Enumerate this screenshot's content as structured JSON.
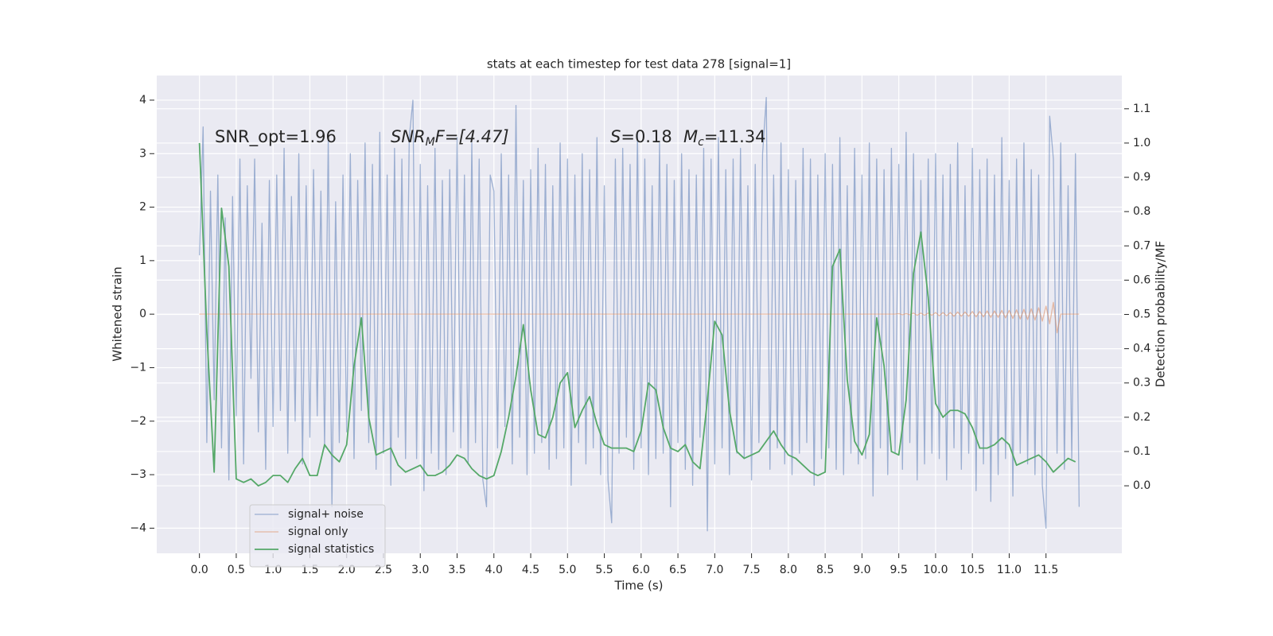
{
  "chart_data": {
    "type": "line",
    "title": "stats at each timestep for test data 278 [signal=1]",
    "xlabel": "Time (s)",
    "ylabel": "Whitened strain",
    "y2label": "Detection probability/MF",
    "annotations": [
      {
        "parts": [
          "SNR_opt=1.96"
        ]
      },
      {
        "parts": [
          "SNR",
          "M",
          "F=[4.47]"
        ]
      },
      {
        "parts": [
          "S",
          "=0.18"
        ]
      },
      {
        "parts": [
          "M",
          "c",
          "=11.34"
        ]
      }
    ],
    "xlim": [
      -0.58,
      12.53
    ],
    "ylim": [
      -4.47,
      4.46
    ],
    "y2lim": [
      -0.197,
      1.197
    ],
    "xticks": [
      {
        "value": 0,
        "label": "0.0"
      },
      0.5,
      {
        "value": 1,
        "label": "1.0"
      },
      1.5,
      {
        "value": 2,
        "label": "2.0"
      },
      2.5,
      {
        "value": 3,
        "label": "3.0"
      },
      3.5,
      {
        "value": 4,
        "label": "4.0"
      },
      4.5,
      {
        "value": 5,
        "label": "5.0"
      },
      5.5,
      {
        "value": 6,
        "label": "6.0"
      },
      6.5,
      {
        "value": 7,
        "label": "7.0"
      },
      7.5,
      {
        "value": 8,
        "label": "8.0"
      },
      8.5,
      {
        "value": 9,
        "label": "9.0"
      },
      9.5,
      {
        "value": 10,
        "label": "10.0"
      },
      10.5,
      {
        "value": 11,
        "label": "11.0"
      },
      11.5
    ],
    "yticks": [
      {
        "value": -4,
        "label": "−4"
      },
      {
        "value": -3,
        "label": "−3"
      },
      {
        "value": -2,
        "label": "−2"
      },
      {
        "value": -1,
        "label": "−1"
      },
      0,
      1,
      2,
      3,
      4
    ],
    "y2ticks": [
      {
        "value": 0,
        "label": "0.0"
      },
      0.1,
      0.2,
      0.3,
      0.4,
      0.5,
      0.6,
      0.7,
      0.8,
      0.9,
      {
        "value": 1,
        "label": "1.0"
      },
      1.1
    ],
    "grid": true,
    "legend": "lower left",
    "x": [
      0,
      0.05,
      0.1,
      0.15,
      0.2,
      0.25,
      0.3,
      0.35,
      0.4,
      0.45,
      0.5,
      0.55,
      0.6,
      0.65,
      0.7,
      0.75,
      0.8,
      0.85,
      0.9,
      0.95,
      1,
      1.05,
      1.1,
      1.15,
      1.2,
      1.25,
      1.3,
      1.35,
      1.4,
      1.45,
      1.5,
      1.55,
      1.6,
      1.65,
      1.7,
      1.75,
      1.8,
      1.85,
      1.9,
      1.95,
      2,
      2.05,
      2.1,
      2.15,
      2.2,
      2.25,
      2.3,
      2.35,
      2.4,
      2.45,
      2.5,
      2.55,
      2.6,
      2.65,
      2.7,
      2.75,
      2.8,
      2.85,
      2.9,
      2.95,
      3,
      3.05,
      3.1,
      3.15,
      3.2,
      3.25,
      3.3,
      3.35,
      3.4,
      3.45,
      3.5,
      3.55,
      3.6,
      3.65,
      3.7,
      3.75,
      3.8,
      3.85,
      3.9,
      3.95,
      4,
      4.05,
      4.1,
      4.15,
      4.2,
      4.25,
      4.3,
      4.35,
      4.4,
      4.45,
      4.5,
      4.55,
      4.6,
      4.65,
      4.7,
      4.75,
      4.8,
      4.85,
      4.9,
      4.95,
      5,
      5.05,
      5.1,
      5.15,
      5.2,
      5.25,
      5.3,
      5.35,
      5.4,
      5.45,
      5.5,
      5.55,
      5.6,
      5.65,
      5.7,
      5.75,
      5.8,
      5.85,
      5.9,
      5.95,
      6,
      6.05,
      6.1,
      6.15,
      6.2,
      6.25,
      6.3,
      6.35,
      6.4,
      6.45,
      6.5,
      6.55,
      6.6,
      6.65,
      6.7,
      6.75,
      6.8,
      6.85,
      6.9,
      6.95,
      7,
      7.05,
      7.1,
      7.15,
      7.2,
      7.25,
      7.3,
      7.35,
      7.4,
      7.45,
      7.5,
      7.55,
      7.6,
      7.65,
      7.7,
      7.75,
      7.8,
      7.85,
      7.9,
      7.95,
      8,
      8.05,
      8.1,
      8.15,
      8.2,
      8.25,
      8.3,
      8.35,
      8.4,
      8.45,
      8.5,
      8.55,
      8.6,
      8.65,
      8.7,
      8.75,
      8.8,
      8.85,
      8.9,
      8.95,
      9,
      9.05,
      9.1,
      9.15,
      9.2,
      9.25,
      9.3,
      9.35,
      9.4,
      9.45,
      9.5,
      9.55,
      9.6,
      9.65,
      9.7,
      9.75,
      9.8,
      9.85,
      9.9,
      9.95,
      10,
      10.05,
      10.1,
      10.15,
      10.2,
      10.25,
      10.3,
      10.35,
      10.4,
      10.45,
      10.5,
      10.55,
      10.6,
      10.65,
      10.7,
      10.75,
      10.8,
      10.85,
      10.9,
      10.95,
      11,
      11.05,
      11.1,
      11.15,
      11.2,
      11.25,
      11.3,
      11.35,
      11.4,
      11.45,
      11.5,
      11.55,
      11.6,
      11.65,
      11.7,
      11.75,
      11.8,
      11.85,
      11.9,
      11.95
    ],
    "series": [
      {
        "name": "signal+ noise",
        "color": "#4c72b0",
        "values": [
          1.1,
          3.5,
          -2.4,
          2.3,
          -1.6,
          2.6,
          -2.5,
          1.8,
          -3.1,
          2.2,
          -1.9,
          2.9,
          -2.8,
          2.4,
          -1.2,
          2.9,
          -2.2,
          1.7,
          -2.9,
          2.5,
          -2.1,
          2.6,
          -1.8,
          3.1,
          -2.6,
          2.2,
          -2.0,
          3.0,
          -2.8,
          2.4,
          -2.3,
          2.7,
          -1.9,
          2.3,
          -2.5,
          3.3,
          -3.6,
          2.1,
          -2.4,
          2.6,
          -2.2,
          3.0,
          -2.7,
          2.5,
          -1.8,
          3.2,
          -2.4,
          2.8,
          -2.9,
          3.4,
          -2.6,
          2.6,
          -3.2,
          3.1,
          -2.3,
          2.9,
          -2.7,
          3.3,
          4.0,
          -2.7,
          2.8,
          -3.3,
          2.4,
          -2.6,
          3.1,
          -2.9,
          2.5,
          -3.0,
          2.7,
          -2.2,
          3.3,
          -2.5,
          2.6,
          -2.8,
          3.2,
          -2.4,
          2.9,
          -3.1,
          -3.6,
          2.6,
          2.3,
          -2.5,
          3.0,
          -2.1,
          2.6,
          -2.8,
          3.9,
          -2.3,
          2.5,
          -3.0,
          2.7,
          -2.6,
          3.1,
          -2.4,
          2.8,
          -2.9,
          2.4,
          -2.7,
          3.2,
          -2.5,
          2.9,
          -3.2,
          2.6,
          -2.4,
          3.0,
          -2.8,
          2.7,
          -2.5,
          3.3,
          -3.0,
          2.4,
          -3.1,
          -3.9,
          2.9,
          -2.6,
          3.1,
          -2.3,
          2.8,
          -2.9,
          3.4,
          -2.5,
          2.9,
          -3.0,
          2.4,
          -2.7,
          3.2,
          -2.6,
          2.8,
          -3.6,
          2.5,
          -2.4,
          3.0,
          -2.9,
          2.7,
          -3.2,
          2.6,
          -2.3,
          3.1,
          -4.05,
          2.9,
          -2.8,
          3.3,
          -2.5,
          2.7,
          -3.0,
          2.9,
          -2.6,
          3.1,
          -2.7,
          2.4,
          -3.1,
          2.8,
          -2.4,
          3.0,
          4.05,
          -2.9,
          2.6,
          -2.5,
          3.2,
          -2.8,
          2.7,
          -3.0,
          2.5,
          -2.6,
          3.1,
          -2.4,
          2.9,
          -3.2,
          2.6,
          -2.7,
          3.0,
          -2.5,
          2.8,
          -2.9,
          3.3,
          -3.0,
          2.4,
          -2.6,
          3.1,
          -2.8,
          2.6,
          -2.7,
          3.2,
          -3.4,
          2.9,
          -2.5,
          2.7,
          -3.0,
          3.1,
          -2.6,
          2.8,
          -2.9,
          3.4,
          -2.4,
          3.0,
          -3.1,
          2.5,
          -2.8,
          2.9,
          -2.6,
          3.0,
          -2.7,
          2.6,
          -3.1,
          2.8,
          -2.5,
          3.2,
          -2.9,
          2.4,
          -2.6,
          3.1,
          -3.3,
          2.7,
          -2.8,
          2.9,
          -3.5,
          2.6,
          -3.0,
          3.3,
          -2.7,
          2.5,
          -3.4,
          2.9,
          -2.6,
          3.2,
          -2.8,
          2.7,
          -3.0,
          2.6,
          -3.2,
          -4.0,
          3.7,
          2.9,
          -2.6,
          3.2,
          -2.9,
          2.4,
          -2.7,
          3.0,
          -3.6
        ]
      },
      {
        "name": "signal only",
        "color": "#dd8452",
        "values": [
          0,
          0,
          0,
          0,
          0,
          0,
          0,
          0,
          0,
          0,
          0,
          0,
          0,
          0,
          0,
          0,
          0,
          0,
          0,
          0,
          0,
          0,
          0,
          0,
          0,
          0,
          0,
          0,
          0,
          0,
          0,
          0,
          0,
          0,
          0,
          0,
          0,
          0,
          0,
          0,
          0,
          0,
          0,
          0,
          0,
          0,
          0,
          0,
          0,
          0,
          0,
          0,
          0,
          0,
          0,
          0,
          0,
          0,
          0,
          0,
          0,
          0,
          0,
          0,
          0,
          0,
          0,
          0,
          0,
          0,
          0,
          0,
          0,
          0,
          0,
          0,
          0,
          0,
          0,
          0,
          0,
          0,
          0,
          0,
          0,
          0,
          0,
          0,
          0,
          0,
          0,
          0,
          0,
          0,
          0,
          0,
          0,
          0,
          0,
          0,
          0,
          0,
          0,
          0,
          0,
          0,
          0,
          0,
          0,
          0,
          0,
          0,
          0,
          0,
          0,
          0,
          0,
          0,
          0,
          0,
          0,
          0,
          0,
          0,
          0,
          0,
          0,
          0,
          0,
          0,
          0,
          0,
          0,
          0,
          0,
          0,
          0,
          0,
          0,
          0,
          0,
          0,
          0,
          0,
          0,
          0,
          0,
          0,
          0,
          0,
          0,
          0,
          0,
          0,
          0,
          0,
          0,
          0,
          0,
          0,
          0,
          0,
          0,
          0,
          0,
          0,
          0,
          0,
          0,
          0,
          0,
          0,
          0,
          0,
          0,
          0,
          0,
          0,
          0,
          0,
          0,
          0,
          0,
          0,
          0,
          0,
          0,
          0,
          0,
          0,
          0.01,
          -0.01,
          0.01,
          -0.01,
          0.02,
          -0.02,
          0.02,
          -0.02,
          0.02,
          -0.02,
          0.03,
          -0.03,
          0.03,
          -0.03,
          0.03,
          -0.04,
          0.04,
          -0.04,
          0.04,
          -0.04,
          0.05,
          -0.05,
          0.05,
          -0.05,
          0.06,
          -0.06,
          0.06,
          -0.06,
          0.07,
          -0.07,
          0.07,
          -0.08,
          0.08,
          -0.09,
          0.09,
          -0.1,
          0.1,
          -0.11,
          0.12,
          -0.13,
          0.15,
          -0.18,
          0.22,
          -0.35,
          0,
          0,
          0,
          0,
          0,
          0
        ]
      },
      {
        "name": "signal statistics",
        "color": "#55a868",
        "axis": "y2",
        "x": [
          0,
          0.1,
          0.2,
          0.3,
          0.4,
          0.5,
          0.6,
          0.7,
          0.8,
          0.9,
          1,
          1.1,
          1.2,
          1.3,
          1.4,
          1.5,
          1.6,
          1.7,
          1.8,
          1.9,
          2,
          2.1,
          2.2,
          2.3,
          2.4,
          2.5,
          2.6,
          2.7,
          2.8,
          2.9,
          3,
          3.1,
          3.2,
          3.3,
          3.4,
          3.5,
          3.6,
          3.7,
          3.8,
          3.9,
          4,
          4.1,
          4.2,
          4.3,
          4.4,
          4.5,
          4.6,
          4.7,
          4.8,
          4.9,
          5,
          5.1,
          5.2,
          5.3,
          5.4,
          5.5,
          5.6,
          5.7,
          5.8,
          5.9,
          6,
          6.1,
          6.2,
          6.3,
          6.4,
          6.5,
          6.6,
          6.7,
          6.8,
          6.9,
          7,
          7.1,
          7.2,
          7.3,
          7.4,
          7.5,
          7.6,
          7.7,
          7.8,
          7.9,
          8,
          8.1,
          8.2,
          8.3,
          8.4,
          8.5,
          8.6,
          8.7,
          8.8,
          8.9,
          9,
          9.1,
          9.2,
          9.3,
          9.4,
          9.5,
          9.6,
          9.7,
          9.8,
          9.9,
          10,
          10.1,
          10.2,
          10.3,
          10.4,
          10.5,
          10.6,
          10.7,
          10.8,
          10.9,
          11,
          11.1,
          11.2,
          11.3,
          11.4,
          11.5,
          11.6,
          11.7,
          11.8,
          11.9
        ],
        "values": [
          1.0,
          0.45,
          0.04,
          0.81,
          0.64,
          0.02,
          0.01,
          0.02,
          0.0,
          0.01,
          0.03,
          0.03,
          0.01,
          0.05,
          0.08,
          0.03,
          0.03,
          0.12,
          0.09,
          0.07,
          0.12,
          0.35,
          0.49,
          0.2,
          0.09,
          0.1,
          0.11,
          0.06,
          0.04,
          0.05,
          0.06,
          0.03,
          0.03,
          0.04,
          0.06,
          0.09,
          0.08,
          0.05,
          0.03,
          0.02,
          0.03,
          0.1,
          0.2,
          0.32,
          0.47,
          0.28,
          0.15,
          0.14,
          0.2,
          0.3,
          0.33,
          0.17,
          0.22,
          0.26,
          0.18,
          0.12,
          0.11,
          0.11,
          0.11,
          0.1,
          0.16,
          0.3,
          0.28,
          0.17,
          0.11,
          0.1,
          0.12,
          0.07,
          0.05,
          0.25,
          0.48,
          0.44,
          0.22,
          0.1,
          0.08,
          0.09,
          0.1,
          0.13,
          0.16,
          0.12,
          0.09,
          0.08,
          0.06,
          0.04,
          0.03,
          0.04,
          0.64,
          0.69,
          0.31,
          0.13,
          0.09,
          0.15,
          0.49,
          0.35,
          0.1,
          0.09,
          0.25,
          0.62,
          0.74,
          0.55,
          0.24,
          0.2,
          0.22,
          0.22,
          0.21,
          0.17,
          0.11,
          0.11,
          0.12,
          0.14,
          0.12,
          0.06,
          0.07,
          0.08,
          0.09,
          0.07,
          0.04,
          0.06,
          0.08,
          0.07
        ]
      }
    ]
  }
}
